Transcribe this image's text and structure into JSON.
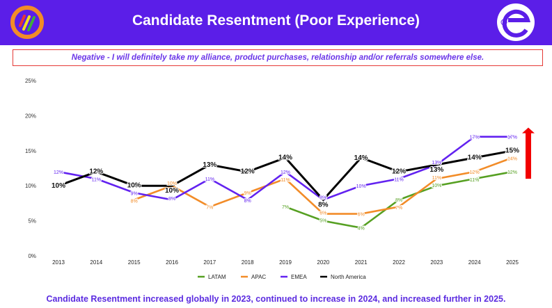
{
  "header": {
    "title": "Candidate Resentment (Poor Experience)"
  },
  "subtitle": "Negative - I will definitely take my alliance, product purchases, relationship and/or referrals somewhere else.",
  "footer": "Candidate Resentment increased globally in 2023, continued to increase in 2024, and increased further in 2025.",
  "chart_data": {
    "type": "line",
    "x": [
      "2013",
      "2014",
      "2015",
      "2016",
      "2017",
      "2018",
      "2019",
      "2020",
      "2021",
      "2022",
      "2023",
      "2024",
      "2025"
    ],
    "ylim": [
      0,
      25
    ],
    "yticks": [
      "0%",
      "5%",
      "10%",
      "15%",
      "20%",
      "25%"
    ],
    "grid": false,
    "legend_position": "bottom",
    "annotation": "red up arrow next to 2025",
    "series": [
      {
        "name": "LATAM",
        "color": "#56a022",
        "values": [
          null,
          null,
          null,
          null,
          null,
          null,
          7,
          5,
          4,
          8,
          10,
          11,
          12
        ]
      },
      {
        "name": "APAC",
        "color": "#f28c28",
        "values": [
          null,
          null,
          8,
          10,
          7,
          9,
          11,
          6,
          6,
          7,
          11,
          12,
          14
        ]
      },
      {
        "name": "EMEA",
        "color": "#6222f0",
        "values": [
          12,
          11,
          9,
          8,
          11,
          8,
          12,
          8,
          10,
          11,
          13,
          17,
          17
        ]
      },
      {
        "name": "North America",
        "color": "#000000",
        "values": [
          10,
          12,
          10,
          10,
          13,
          12,
          14,
          8,
          14,
          12,
          13,
          14,
          15
        ]
      }
    ]
  }
}
